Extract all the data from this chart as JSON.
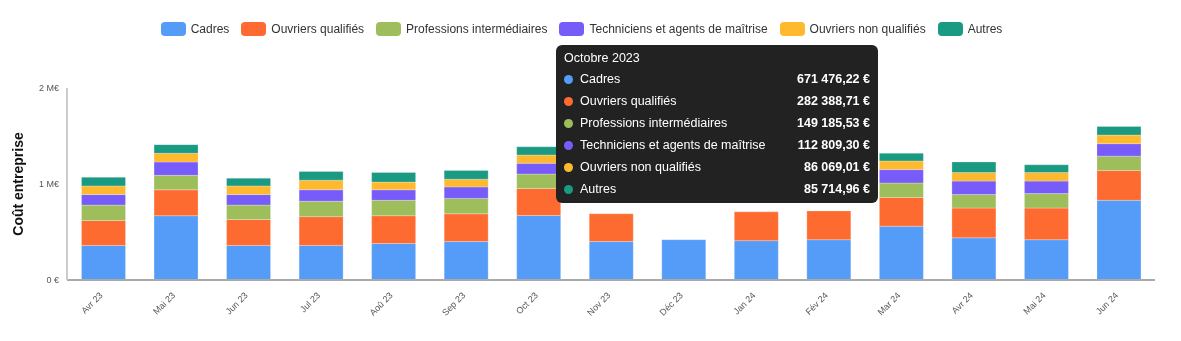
{
  "chart_data": {
    "type": "bar",
    "stacked": true,
    "ylabel": "Coût entreprise",
    "categories": [
      "Avr 23",
      "Mai 23",
      "Jun 23",
      "Jul 23",
      "Aoû 23",
      "Sep 23",
      "Oct 23",
      "Nov 23",
      "Déc 23",
      "Jan 24",
      "Fév 24",
      "Mar 24",
      "Avr 24",
      "Mai 24",
      "Jun 24"
    ],
    "ylim": [
      0,
      2000000
    ],
    "yticks": [
      {
        "value": 0,
        "label": "0 €"
      },
      {
        "value": 1000000,
        "label": "1 M€"
      },
      {
        "value": 2000000,
        "label": "2 M€"
      }
    ],
    "legend": "top",
    "series": [
      {
        "name": "Cadres",
        "color": "#559bf8",
        "values": [
          360000,
          670000,
          360000,
          360000,
          380000,
          400000,
          671476.22,
          400000,
          420000,
          410000,
          420000,
          560000,
          440000,
          420000,
          830000
        ]
      },
      {
        "name": "Ouvriers qualifiés",
        "color": "#fe6b30",
        "values": [
          260000,
          270000,
          270000,
          300000,
          290000,
          290000,
          282388.71,
          290000,
          null,
          300000,
          300000,
          300000,
          310000,
          330000,
          310000
        ]
      },
      {
        "name": "Professions intermédiaires",
        "color": "#9ebe5b",
        "values": [
          160000,
          150000,
          150000,
          160000,
          160000,
          160000,
          149185.53,
          null,
          null,
          null,
          null,
          150000,
          140000,
          150000,
          150000
        ]
      },
      {
        "name": "Techniciens et agents de maîtrise",
        "color": "#785cfa",
        "values": [
          110000,
          140000,
          110000,
          120000,
          110000,
          120000,
          112809.3,
          null,
          null,
          null,
          null,
          140000,
          140000,
          130000,
          130000
        ]
      },
      {
        "name": "Ouvriers non qualifiés",
        "color": "#feb92e",
        "values": [
          90000,
          90000,
          90000,
          100000,
          80000,
          80000,
          86069.01,
          null,
          null,
          null,
          null,
          90000,
          90000,
          90000,
          90000
        ]
      },
      {
        "name": "Autres",
        "color": "#1a9983",
        "values": [
          90000,
          90000,
          80000,
          90000,
          100000,
          90000,
          85714.96,
          null,
          null,
          null,
          null,
          80000,
          110000,
          80000,
          90000
        ]
      }
    ],
    "annotations": [
      "Octobre 2023",
      "671 476,22 €",
      "282 388,71 €",
      "149 185,53 €",
      "112 809,30 €",
      "86 069,01 €",
      "85 714,96 €"
    ]
  }
}
